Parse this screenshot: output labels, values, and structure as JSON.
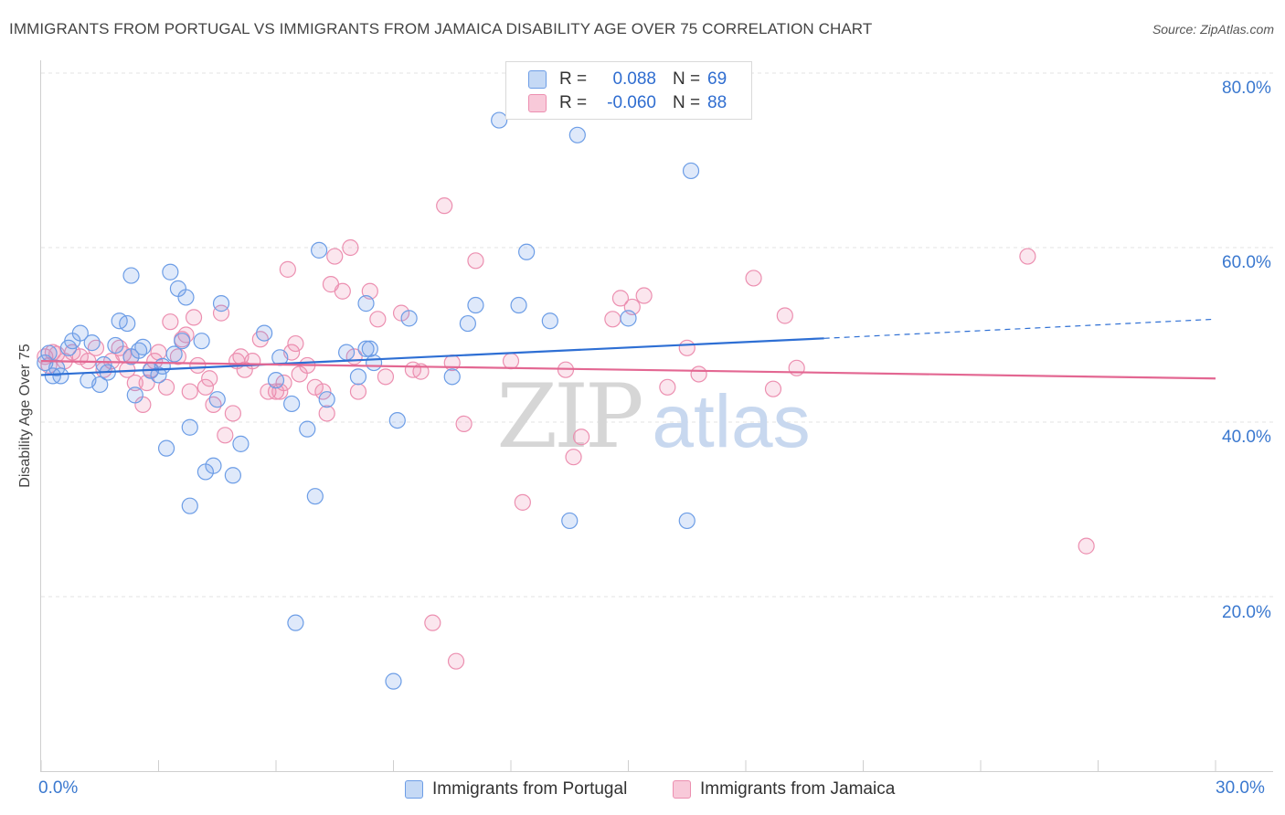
{
  "title": "IMMIGRANTS FROM PORTUGAL VS IMMIGRANTS FROM JAMAICA DISABILITY AGE OVER 75 CORRELATION CHART",
  "source": "Source: ZipAtlas.com",
  "watermark": {
    "zip": "ZIP",
    "atlas": "atlas"
  },
  "colors": {
    "portugal": "#6c9de6",
    "jamaica": "#ec8fb0",
    "portugal_line": "#2e6fd4",
    "jamaica_line": "#e36792",
    "axis_text": "#3a78cf"
  },
  "legend": {
    "rows": [
      {
        "r_label": "R =",
        "r_value": "0.088",
        "n_label": "N =",
        "n_value": "69"
      },
      {
        "r_label": "R =",
        "r_value": "-0.060",
        "n_label": "N =",
        "n_value": "88"
      }
    ]
  },
  "bottom_legend": {
    "portugal": "Immigrants from Portugal",
    "jamaica": "Immigrants from Jamaica"
  },
  "axis": {
    "y_label": "Disability Age Over 75",
    "y_ticks": [
      "80.0%",
      "60.0%",
      "40.0%",
      "20.0%"
    ],
    "x_left": "0.0%",
    "x_right": "30.0%"
  },
  "chart_data": {
    "type": "scatter",
    "xlabel": "",
    "ylabel": "Disability Age Over 75",
    "xlim": [
      0,
      30
    ],
    "ylim": [
      0,
      82
    ],
    "grid": true,
    "legend_position": "top-center",
    "series": [
      {
        "name": "Immigrants from Portugal",
        "trend": {
          "x": [
            0,
            20
          ],
          "y": [
            45.4,
            49.6
          ],
          "dashed_extension_to": [
            30,
            51.8
          ]
        },
        "points": [
          [
            0.1,
            46.8
          ],
          [
            0.2,
            47.9
          ],
          [
            0.3,
            45.3
          ],
          [
            0.5,
            45.3
          ],
          [
            0.7,
            48.5
          ],
          [
            0.8,
            49.3
          ],
          [
            1.0,
            50.2
          ],
          [
            1.2,
            44.8
          ],
          [
            1.3,
            49.1
          ],
          [
            1.5,
            44.3
          ],
          [
            1.7,
            45.7
          ],
          [
            1.9,
            48.8
          ],
          [
            2.0,
            51.6
          ],
          [
            2.2,
            51.3
          ],
          [
            2.5,
            48.2
          ],
          [
            2.4,
            43.1
          ],
          [
            2.3,
            56.8
          ],
          [
            2.6,
            48.6
          ],
          [
            2.8,
            45.9
          ],
          [
            3.0,
            45.4
          ],
          [
            3.1,
            46.4
          ],
          [
            3.2,
            37.0
          ],
          [
            3.3,
            57.2
          ],
          [
            3.4,
            47.8
          ],
          [
            3.5,
            55.3
          ],
          [
            3.6,
            49.3
          ],
          [
            3.7,
            54.3
          ],
          [
            3.8,
            39.4
          ],
          [
            3.8,
            30.4
          ],
          [
            4.1,
            49.3
          ],
          [
            4.2,
            34.3
          ],
          [
            4.4,
            35.0
          ],
          [
            4.5,
            42.6
          ],
          [
            4.6,
            53.6
          ],
          [
            4.9,
            33.9
          ],
          [
            5.1,
            37.5
          ],
          [
            5.7,
            50.2
          ],
          [
            6.0,
            44.8
          ],
          [
            6.1,
            47.4
          ],
          [
            6.4,
            42.1
          ],
          [
            6.5,
            17.0
          ],
          [
            6.8,
            39.2
          ],
          [
            7.0,
            31.5
          ],
          [
            7.1,
            59.7
          ],
          [
            7.3,
            42.6
          ],
          [
            7.8,
            48.0
          ],
          [
            8.1,
            45.2
          ],
          [
            8.3,
            53.6
          ],
          [
            8.3,
            48.4
          ],
          [
            8.4,
            48.4
          ],
          [
            8.5,
            46.8
          ],
          [
            9.1,
            40.2
          ],
          [
            9.4,
            51.9
          ],
          [
            10.5,
            45.2
          ],
          [
            10.9,
            51.3
          ],
          [
            11.1,
            53.4
          ],
          [
            11.7,
            74.6
          ],
          [
            12.2,
            53.4
          ],
          [
            12.4,
            59.5
          ],
          [
            13.0,
            51.6
          ],
          [
            13.5,
            28.7
          ],
          [
            13.7,
            72.9
          ],
          [
            15.0,
            51.9
          ],
          [
            16.5,
            28.7
          ],
          [
            16.6,
            68.8
          ],
          [
            9.0,
            10.3
          ],
          [
            2.3,
            47.5
          ],
          [
            0.4,
            46.2
          ],
          [
            1.6,
            46.6
          ]
        ]
      },
      {
        "name": "Immigrants from Jamaica",
        "trend": {
          "x": [
            0,
            30
          ],
          "y": [
            47.0,
            45.0
          ]
        },
        "points": [
          [
            0.1,
            47.5
          ],
          [
            0.2,
            46.5
          ],
          [
            0.4,
            47.8
          ],
          [
            0.6,
            47.0
          ],
          [
            0.8,
            48.0
          ],
          [
            1.0,
            47.5
          ],
          [
            1.2,
            47.0
          ],
          [
            1.4,
            48.5
          ],
          [
            1.6,
            46.0
          ],
          [
            1.8,
            47.0
          ],
          [
            2.0,
            48.5
          ],
          [
            2.2,
            46.0
          ],
          [
            2.3,
            47.5
          ],
          [
            2.4,
            44.5
          ],
          [
            2.6,
            42.0
          ],
          [
            2.7,
            44.5
          ],
          [
            2.8,
            46.0
          ],
          [
            2.9,
            47.0
          ],
          [
            3.0,
            48.0
          ],
          [
            3.2,
            44.0
          ],
          [
            3.3,
            51.5
          ],
          [
            3.5,
            47.5
          ],
          [
            3.6,
            49.5
          ],
          [
            3.7,
            50.0
          ],
          [
            3.8,
            43.5
          ],
          [
            3.9,
            52.0
          ],
          [
            4.0,
            46.5
          ],
          [
            4.2,
            44.0
          ],
          [
            4.3,
            45.0
          ],
          [
            4.4,
            42.0
          ],
          [
            4.6,
            52.5
          ],
          [
            4.7,
            38.5
          ],
          [
            4.9,
            41.0
          ],
          [
            5.1,
            47.5
          ],
          [
            5.2,
            46.0
          ],
          [
            5.4,
            47.0
          ],
          [
            5.6,
            49.5
          ],
          [
            5.8,
            43.5
          ],
          [
            6.0,
            43.5
          ],
          [
            6.2,
            44.5
          ],
          [
            6.4,
            48.0
          ],
          [
            6.5,
            49.0
          ],
          [
            6.6,
            45.5
          ],
          [
            6.8,
            46.5
          ],
          [
            7.0,
            44.0
          ],
          [
            7.2,
            43.5
          ],
          [
            7.3,
            41.0
          ],
          [
            7.4,
            55.8
          ],
          [
            7.5,
            59.0
          ],
          [
            7.7,
            55.0
          ],
          [
            7.9,
            60.0
          ],
          [
            8.0,
            47.5
          ],
          [
            8.1,
            43.5
          ],
          [
            8.4,
            55.0
          ],
          [
            8.6,
            51.8
          ],
          [
            8.8,
            45.2
          ],
          [
            9.2,
            52.5
          ],
          [
            9.7,
            45.8
          ],
          [
            10.0,
            17.0
          ],
          [
            10.3,
            64.8
          ],
          [
            10.6,
            12.6
          ],
          [
            10.8,
            39.8
          ],
          [
            11.1,
            58.5
          ],
          [
            12.0,
            47.0
          ],
          [
            12.3,
            30.8
          ],
          [
            13.4,
            46.0
          ],
          [
            13.6,
            36.0
          ],
          [
            13.8,
            38.3
          ],
          [
            14.6,
            51.8
          ],
          [
            14.8,
            54.2
          ],
          [
            15.1,
            53.2
          ],
          [
            15.4,
            54.5
          ],
          [
            16.0,
            44.0
          ],
          [
            16.5,
            48.5
          ],
          [
            16.8,
            45.5
          ],
          [
            18.2,
            56.5
          ],
          [
            18.7,
            43.8
          ],
          [
            19.0,
            52.2
          ],
          [
            19.3,
            46.2
          ],
          [
            25.2,
            59.0
          ],
          [
            26.7,
            25.8
          ],
          [
            6.3,
            57.5
          ],
          [
            9.5,
            46.0
          ],
          [
            2.1,
            47.8
          ],
          [
            5.0,
            47.0
          ],
          [
            0.3,
            48.0
          ],
          [
            6.1,
            43.5
          ],
          [
            10.5,
            46.8
          ]
        ]
      }
    ]
  }
}
